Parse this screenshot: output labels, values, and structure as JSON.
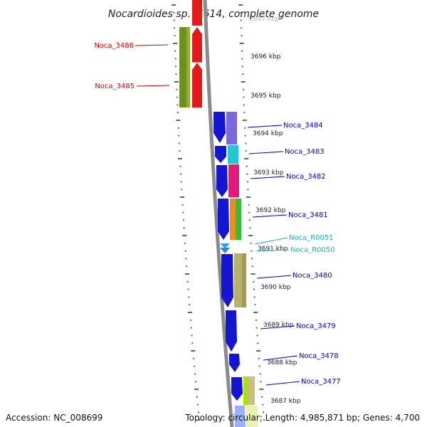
{
  "title": "Nocardioides sp. JS614, complete genome",
  "accession_text": "Accession: NC_008699",
  "topology_text": "Topology: circular; Length: 4,985,871 bp; Genes: 4,700",
  "colors": {
    "tick": "#2e8b2e",
    "backbone": "#8a8a8a",
    "label_red": "#dd0000",
    "label_blue": "#0000cc",
    "label_cyan": "#22aadd",
    "leader_red": "#cc0000",
    "leader_blue": "#0000cc",
    "leader_cyan": "#22aadd"
  },
  "kbp_labels": [
    "3697 kbp",
    "3696 kbp",
    "3695 kbp",
    "3694 kbp",
    "3693 kbp",
    "3692 kbp",
    "3691 kbp",
    "3690 kbp",
    "3689 kbp",
    "3688 kbp",
    "3687 kbp"
  ],
  "gene_labels": [
    {
      "text": "Noca_3486",
      "color": "red"
    },
    {
      "text": "Noca_3485",
      "color": "red"
    },
    {
      "text": "Noca_3484",
      "color": "blue"
    },
    {
      "text": "Noca_3483",
      "color": "blue"
    },
    {
      "text": "Noca_3482",
      "color": "blue"
    },
    {
      "text": "Noca_3481",
      "color": "blue"
    },
    {
      "text": "Noca_R0051",
      "color": "cyan"
    },
    {
      "text": "Noca_R0050",
      "color": "cyan"
    },
    {
      "text": "Noca_3480",
      "color": "blue"
    },
    {
      "text": "Noca_3479",
      "color": "blue"
    },
    {
      "text": "Noca_3478",
      "color": "blue"
    },
    {
      "text": "Noca_3477",
      "color": "blue"
    }
  ]
}
